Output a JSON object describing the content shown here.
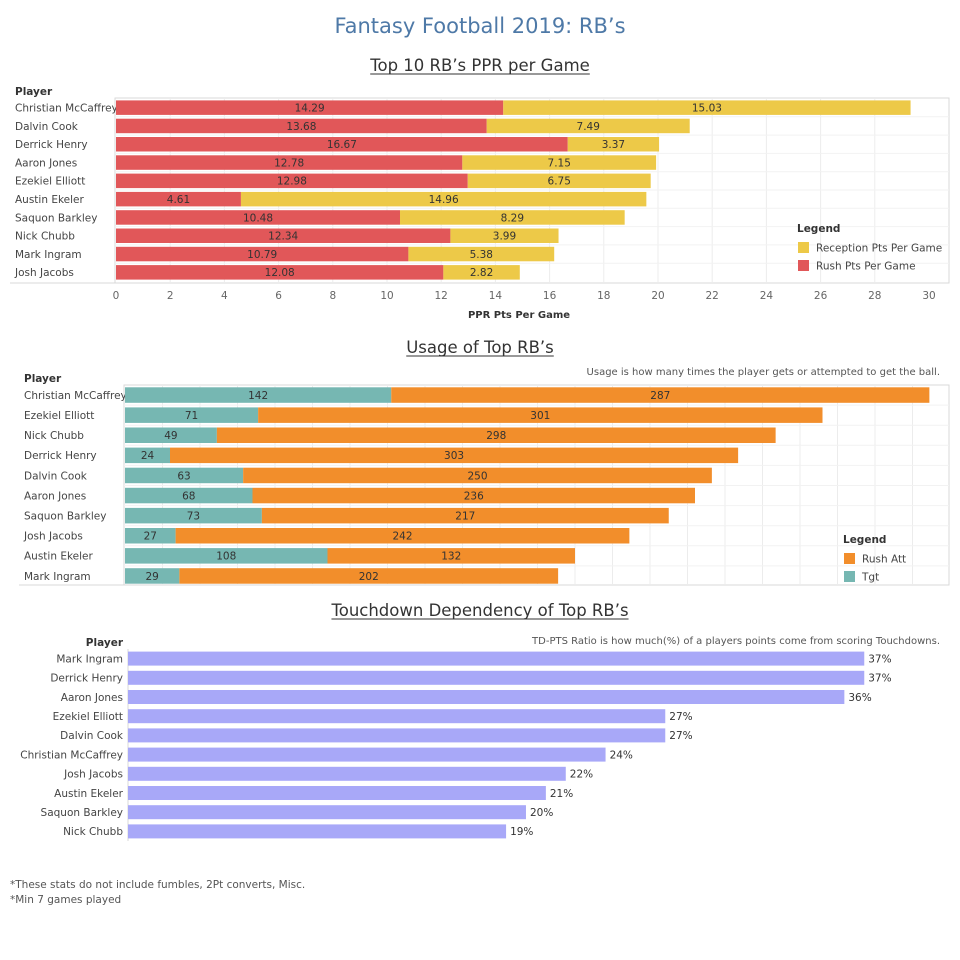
{
  "title": "Fantasy Football 2019: RB’s",
  "colors": {
    "title": "#4e79a7",
    "rush_pts": "#e15759",
    "rec_pts": "#edc948",
    "tgt": "#76b7b2",
    "rush_att": "#f28e2b",
    "td": "#a8a8f8"
  },
  "chart_data": [
    {
      "type": "bar",
      "orientation": "horizontal",
      "stacked": true,
      "title": "Top 10 RB’s PPR per Game",
      "row_header": "Player",
      "xlabel": "PPR Pts Per Game",
      "xlim": [
        0,
        30
      ],
      "xticks": [
        0,
        2,
        4,
        6,
        8,
        10,
        12,
        14,
        16,
        18,
        20,
        22,
        24,
        26,
        28,
        30
      ],
      "grid": true,
      "legend": {
        "title": "Legend",
        "position": "right",
        "entries": [
          "Reception Pts Per Game",
          "Rush Pts Per Game"
        ]
      },
      "categories": [
        "Christian McCaffrey",
        "Dalvin Cook",
        "Derrick Henry",
        "Aaron Jones",
        "Ezekiel Elliott",
        "Austin Ekeler",
        "Saquon Barkley",
        "Nick Chubb",
        "Mark Ingram",
        "Josh Jacobs"
      ],
      "series": [
        {
          "name": "Rush Pts Per Game",
          "values": [
            14.29,
            13.68,
            16.67,
            12.78,
            12.98,
            4.61,
            10.48,
            12.34,
            10.79,
            12.08
          ]
        },
        {
          "name": "Reception Pts Per Game",
          "values": [
            15.03,
            7.49,
            3.37,
            7.15,
            6.75,
            14.96,
            8.29,
            3.99,
            5.38,
            2.82
          ]
        }
      ]
    },
    {
      "type": "bar",
      "orientation": "horizontal",
      "stacked": true,
      "title": "Usage of Top RB’s",
      "subtitle": "Usage is how many times the player gets or attempted to get the ball.",
      "row_header": "Player",
      "xlim": [
        0,
        440
      ],
      "grid": true,
      "legend": {
        "title": "Legend",
        "position": "right",
        "entries": [
          "Rush Att",
          "Tgt"
        ]
      },
      "categories": [
        "Christian McCaffrey",
        "Ezekiel Elliott",
        "Nick Chubb",
        "Derrick Henry",
        "Dalvin Cook",
        "Aaron Jones",
        "Saquon Barkley",
        "Josh Jacobs",
        "Austin Ekeler",
        "Mark Ingram"
      ],
      "series": [
        {
          "name": "Tgt",
          "values": [
            142,
            71,
            49,
            24,
            63,
            68,
            73,
            27,
            108,
            29
          ]
        },
        {
          "name": "Rush Att",
          "values": [
            287,
            301,
            298,
            303,
            250,
            236,
            217,
            242,
            132,
            202
          ]
        }
      ]
    },
    {
      "type": "bar",
      "orientation": "horizontal",
      "title": "Touchdown Dependency of Top RB’s",
      "subtitle": "TD-PTS Ratio is how much(%) of a players points come from scoring Touchdowns.",
      "row_header": "Player",
      "xlim": [
        0,
        39.5
      ],
      "value_suffix": "%",
      "categories": [
        "Mark Ingram",
        "Derrick Henry",
        "Aaron Jones",
        "Ezekiel Elliott",
        "Dalvin Cook",
        "Christian McCaffrey",
        "Josh Jacobs",
        "Austin Ekeler",
        "Saquon Barkley",
        "Nick Chubb"
      ],
      "values": [
        37,
        37,
        36,
        27,
        27,
        24,
        22,
        21,
        20,
        19
      ]
    }
  ],
  "footnotes": [
    "*These stats do not include fumbles, 2Pt converts, Misc.",
    "*Min 7 games played"
  ]
}
